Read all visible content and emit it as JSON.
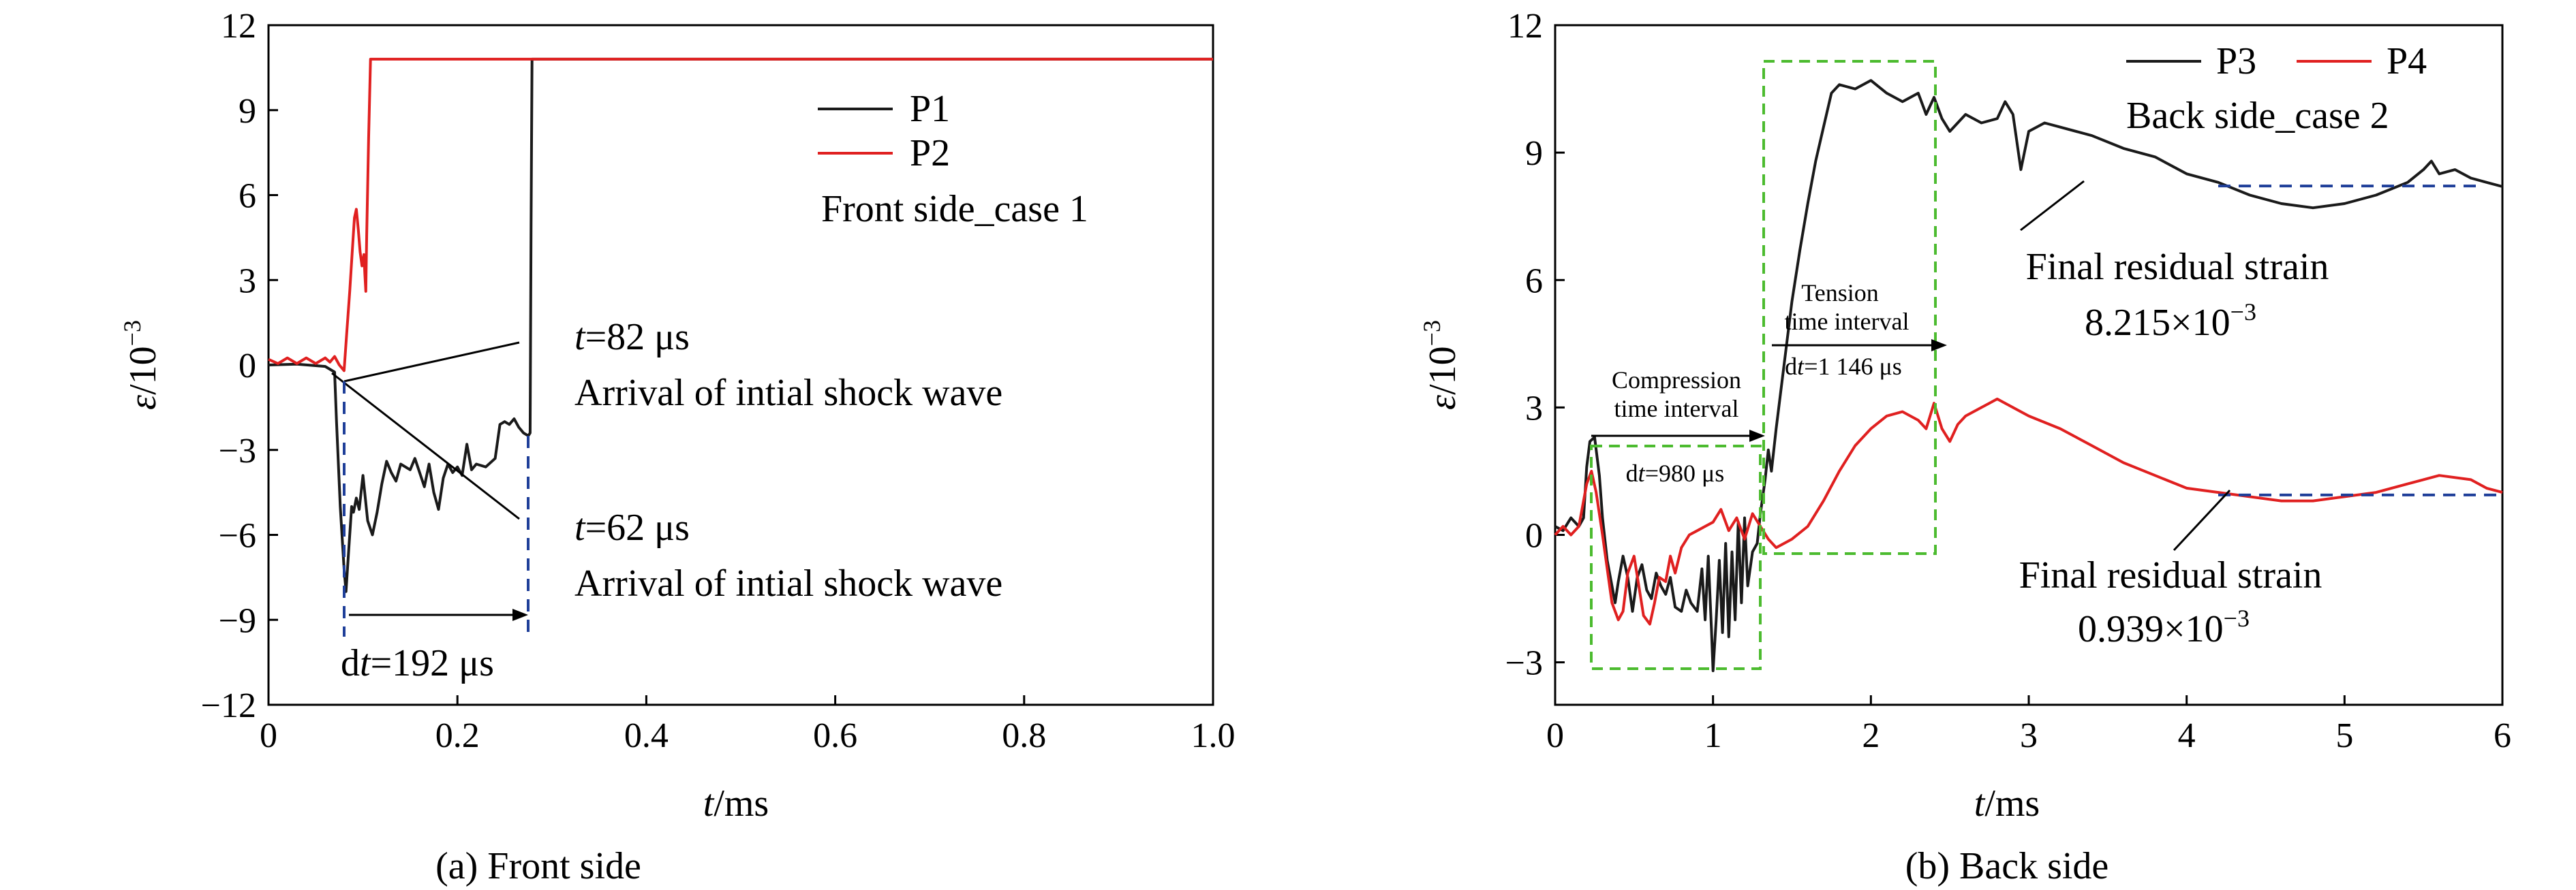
{
  "chart_data": [
    {
      "type": "line",
      "caption": "(a) Front side",
      "xlabel_italic": "t",
      "xlabel_unit": "/ms",
      "ylabel_italic": "ε",
      "ylabel_unit": "/10",
      "ylabel_exp": "−3",
      "xlim": [
        0,
        1.0
      ],
      "ylim": [
        -12,
        12
      ],
      "xticks": [
        0,
        0.2,
        0.4,
        0.6,
        0.8,
        1.0
      ],
      "xtick_labels": [
        "0",
        "0.2",
        "0.4",
        "0.6",
        "0.8",
        "1.0"
      ],
      "yticks": [
        -12,
        -9,
        -6,
        -3,
        0,
        3,
        6,
        9,
        12
      ],
      "ytick_labels": [
        "−12",
        "−9",
        "−6",
        "−3",
        "0",
        "3",
        "6",
        "9",
        "12"
      ],
      "legend_position": "upper-right",
      "legend_note": "Front side_case 1",
      "series": [
        {
          "name": "P1",
          "color": "#1a1a1a",
          "points": [
            [
              0,
              0
            ],
            [
              0.03,
              0.03
            ],
            [
              0.06,
              -0.05
            ],
            [
              0.07,
              -0.25
            ],
            [
              0.072,
              -2
            ],
            [
              0.076,
              -5
            ],
            [
              0.08,
              -7.2
            ],
            [
              0.082,
              -8
            ],
            [
              0.085,
              -6.5
            ],
            [
              0.088,
              -5
            ],
            [
              0.09,
              -5.2
            ],
            [
              0.093,
              -4.7
            ],
            [
              0.096,
              -5.1
            ],
            [
              0.1,
              -3.9
            ],
            [
              0.105,
              -5.5
            ],
            [
              0.11,
              -6
            ],
            [
              0.115,
              -5.2
            ],
            [
              0.12,
              -4.2
            ],
            [
              0.125,
              -3.4
            ],
            [
              0.13,
              -3.8
            ],
            [
              0.135,
              -4.1
            ],
            [
              0.14,
              -3.5
            ],
            [
              0.15,
              -3.7
            ],
            [
              0.155,
              -3.3
            ],
            [
              0.16,
              -3.8
            ],
            [
              0.165,
              -4.3
            ],
            [
              0.17,
              -3.5
            ],
            [
              0.175,
              -4.5
            ],
            [
              0.18,
              -5.1
            ],
            [
              0.185,
              -4
            ],
            [
              0.19,
              -3.5
            ],
            [
              0.195,
              -3.8
            ],
            [
              0.2,
              -3.6
            ],
            [
              0.205,
              -3.9
            ],
            [
              0.21,
              -2.8
            ],
            [
              0.215,
              -3.7
            ],
            [
              0.22,
              -3.5
            ],
            [
              0.23,
              -3.6
            ],
            [
              0.24,
              -3.3
            ],
            [
              0.245,
              -2.1
            ],
            [
              0.25,
              -2.0
            ],
            [
              0.255,
              -2.1
            ],
            [
              0.26,
              -1.9
            ],
            [
              0.265,
              -2.2
            ],
            [
              0.27,
              -2.4
            ],
            [
              0.275,
              -2.5
            ],
            [
              0.277,
              -2.4
            ],
            [
              0.278,
              5
            ],
            [
              0.279,
              10.8
            ],
            [
              1.0,
              10.8
            ]
          ]
        },
        {
          "name": "P2",
          "color": "#e02020",
          "points": [
            [
              0,
              0.2
            ],
            [
              0.01,
              0.05
            ],
            [
              0.02,
              0.25
            ],
            [
              0.03,
              0.05
            ],
            [
              0.04,
              0.25
            ],
            [
              0.05,
              0.05
            ],
            [
              0.06,
              0.25
            ],
            [
              0.065,
              0.1
            ],
            [
              0.07,
              0.3
            ],
            [
              0.075,
              0
            ],
            [
              0.08,
              -0.2
            ],
            [
              0.083,
              1.2
            ],
            [
              0.086,
              2.6
            ],
            [
              0.089,
              4.2
            ],
            [
              0.091,
              5.2
            ],
            [
              0.093,
              5.5
            ],
            [
              0.095,
              4.8
            ],
            [
              0.097,
              4.0
            ],
            [
              0.099,
              3.5
            ],
            [
              0.101,
              3.9
            ],
            [
              0.102,
              3.2
            ],
            [
              0.103,
              2.6
            ],
            [
              0.104,
              4.6
            ],
            [
              0.106,
              8
            ],
            [
              0.108,
              10.8
            ],
            [
              1.0,
              10.8
            ]
          ]
        }
      ],
      "annotations": {
        "a1_italic": "t",
        "a1_rest": "=82 μs",
        "a1_text": "Arrival of intial shock wave",
        "a2_italic": "t",
        "a2_rest": "=62 μs",
        "a2_text": "Arrival of intial shock wave",
        "dt_prefix": "d",
        "dt_italic": "t",
        "dt_rest": "=192 μs"
      }
    },
    {
      "type": "line",
      "caption": "(b) Back side",
      "xlabel_italic": "t",
      "xlabel_unit": "/ms",
      "ylabel_italic": "ε",
      "ylabel_unit": "/10",
      "ylabel_exp": "−3",
      "xlim": [
        0,
        6
      ],
      "ylim": [
        -4,
        12
      ],
      "xticks": [
        0,
        1,
        2,
        3,
        4,
        5,
        6
      ],
      "xtick_labels": [
        "0",
        "1",
        "2",
        "3",
        "4",
        "5",
        "6"
      ],
      "yticks": [
        -3,
        0,
        3,
        6,
        9,
        12
      ],
      "ytick_labels": [
        "−3",
        "0",
        "3",
        "6",
        "9",
        "12"
      ],
      "legend_position": "top-right",
      "legend_note": "Back side_case 2",
      "series": [
        {
          "name": "P3",
          "color": "#1a1a1a",
          "points": [
            [
              0,
              0.2
            ],
            [
              0.05,
              0.1
            ],
            [
              0.1,
              0.4
            ],
            [
              0.15,
              0.2
            ],
            [
              0.18,
              0.4
            ],
            [
              0.2,
              1.6
            ],
            [
              0.22,
              2.2
            ],
            [
              0.25,
              2.3
            ],
            [
              0.28,
              1.4
            ],
            [
              0.3,
              0.4
            ],
            [
              0.33,
              -0.6
            ],
            [
              0.36,
              -1.2
            ],
            [
              0.38,
              -1.6
            ],
            [
              0.4,
              -1.1
            ],
            [
              0.43,
              -0.5
            ],
            [
              0.46,
              -1.0
            ],
            [
              0.49,
              -1.8
            ],
            [
              0.52,
              -1.0
            ],
            [
              0.55,
              -0.7
            ],
            [
              0.58,
              -1.3
            ],
            [
              0.61,
              -1.5
            ],
            [
              0.64,
              -0.9
            ],
            [
              0.67,
              -1.2
            ],
            [
              0.7,
              -1.4
            ],
            [
              0.73,
              -1.0
            ],
            [
              0.76,
              -1.7
            ],
            [
              0.8,
              -1.8
            ],
            [
              0.83,
              -1.3
            ],
            [
              0.86,
              -1.6
            ],
            [
              0.9,
              -1.8
            ],
            [
              0.93,
              -0.8
            ],
            [
              0.95,
              -2.0
            ],
            [
              0.97,
              -0.5
            ],
            [
              0.99,
              -2.2
            ],
            [
              1.0,
              -3.2
            ],
            [
              1.02,
              -2.0
            ],
            [
              1.04,
              -0.6
            ],
            [
              1.06,
              -2.3
            ],
            [
              1.08,
              -0.2
            ],
            [
              1.1,
              -2.4
            ],
            [
              1.12,
              -0.4
            ],
            [
              1.14,
              -2.0
            ],
            [
              1.16,
              0.3
            ],
            [
              1.18,
              -1.6
            ],
            [
              1.2,
              0.4
            ],
            [
              1.22,
              -1.2
            ],
            [
              1.25,
              -0.4
            ],
            [
              1.28,
              -0.2
            ],
            [
              1.3,
              0.5
            ],
            [
              1.33,
              1.3
            ],
            [
              1.35,
              2.0
            ],
            [
              1.37,
              1.5
            ],
            [
              1.4,
              2.5
            ],
            [
              1.45,
              4.0
            ],
            [
              1.5,
              5.5
            ],
            [
              1.55,
              6.7
            ],
            [
              1.6,
              7.8
            ],
            [
              1.65,
              8.8
            ],
            [
              1.7,
              9.6
            ],
            [
              1.75,
              10.4
            ],
            [
              1.8,
              10.6
            ],
            [
              1.9,
              10.5
            ],
            [
              2.0,
              10.7
            ],
            [
              2.1,
              10.4
            ],
            [
              2.2,
              10.2
            ],
            [
              2.3,
              10.4
            ],
            [
              2.35,
              9.9
            ],
            [
              2.4,
              10.3
            ],
            [
              2.45,
              9.8
            ],
            [
              2.5,
              9.5
            ],
            [
              2.6,
              9.9
            ],
            [
              2.7,
              9.7
            ],
            [
              2.8,
              9.8
            ],
            [
              2.85,
              10.2
            ],
            [
              2.9,
              9.9
            ],
            [
              2.95,
              8.6
            ],
            [
              3.0,
              9.5
            ],
            [
              3.1,
              9.7
            ],
            [
              3.2,
              9.6
            ],
            [
              3.4,
              9.4
            ],
            [
              3.6,
              9.1
            ],
            [
              3.8,
              8.9
            ],
            [
              4.0,
              8.5
            ],
            [
              4.2,
              8.3
            ],
            [
              4.4,
              8.0
            ],
            [
              4.6,
              7.8
            ],
            [
              4.8,
              7.7
            ],
            [
              5.0,
              7.8
            ],
            [
              5.2,
              8.0
            ],
            [
              5.4,
              8.3
            ],
            [
              5.5,
              8.6
            ],
            [
              5.55,
              8.8
            ],
            [
              5.6,
              8.5
            ],
            [
              5.7,
              8.6
            ],
            [
              5.8,
              8.4
            ],
            [
              5.9,
              8.3
            ],
            [
              6.0,
              8.2
            ]
          ]
        },
        {
          "name": "P4",
          "color": "#e02020",
          "points": [
            [
              0,
              0.0
            ],
            [
              0.05,
              0.2
            ],
            [
              0.1,
              0.0
            ],
            [
              0.15,
              0.2
            ],
            [
              0.2,
              1.2
            ],
            [
              0.23,
              1.5
            ],
            [
              0.26,
              1.0
            ],
            [
              0.3,
              0.0
            ],
            [
              0.33,
              -0.8
            ],
            [
              0.36,
              -1.6
            ],
            [
              0.4,
              -2.0
            ],
            [
              0.43,
              -1.8
            ],
            [
              0.46,
              -0.9
            ],
            [
              0.5,
              -0.5
            ],
            [
              0.53,
              -1.2
            ],
            [
              0.56,
              -1.9
            ],
            [
              0.6,
              -2.1
            ],
            [
              0.63,
              -1.6
            ],
            [
              0.66,
              -1.0
            ],
            [
              0.7,
              -1.1
            ],
            [
              0.73,
              -0.5
            ],
            [
              0.76,
              -0.9
            ],
            [
              0.8,
              -0.3
            ],
            [
              0.85,
              0.0
            ],
            [
              0.9,
              0.1
            ],
            [
              0.95,
              0.2
            ],
            [
              1.0,
              0.3
            ],
            [
              1.05,
              0.6
            ],
            [
              1.1,
              0.1
            ],
            [
              1.15,
              0.4
            ],
            [
              1.2,
              -0.1
            ],
            [
              1.25,
              0.5
            ],
            [
              1.3,
              0.2
            ],
            [
              1.35,
              -0.1
            ],
            [
              1.4,
              -0.3
            ],
            [
              1.5,
              -0.1
            ],
            [
              1.6,
              0.2
            ],
            [
              1.7,
              0.8
            ],
            [
              1.8,
              1.5
            ],
            [
              1.9,
              2.1
            ],
            [
              2.0,
              2.5
            ],
            [
              2.1,
              2.8
            ],
            [
              2.2,
              2.9
            ],
            [
              2.3,
              2.7
            ],
            [
              2.35,
              2.5
            ],
            [
              2.4,
              3.1
            ],
            [
              2.45,
              2.5
            ],
            [
              2.5,
              2.2
            ],
            [
              2.55,
              2.6
            ],
            [
              2.6,
              2.8
            ],
            [
              2.7,
              3.0
            ],
            [
              2.8,
              3.2
            ],
            [
              2.9,
              3.0
            ],
            [
              3.0,
              2.8
            ],
            [
              3.2,
              2.5
            ],
            [
              3.4,
              2.1
            ],
            [
              3.6,
              1.7
            ],
            [
              3.8,
              1.4
            ],
            [
              4.0,
              1.1
            ],
            [
              4.2,
              1.0
            ],
            [
              4.4,
              0.9
            ],
            [
              4.6,
              0.8
            ],
            [
              4.8,
              0.8
            ],
            [
              5.0,
              0.9
            ],
            [
              5.2,
              1.0
            ],
            [
              5.4,
              1.2
            ],
            [
              5.6,
              1.4
            ],
            [
              5.8,
              1.3
            ],
            [
              5.9,
              1.1
            ],
            [
              6.0,
              1.0
            ]
          ]
        }
      ],
      "annotations": {
        "compression_l1": "Compression",
        "compression_l2": "time interval",
        "compression_dt_prefix": "d",
        "compression_dt_italic": "t",
        "compression_dt_rest": "=980 μs",
        "tension_l1": "Tension",
        "tension_l2": "time interval",
        "tension_dt_prefix": "d",
        "tension_dt_italic": "t",
        "tension_dt_rest": "=1 146 μs",
        "residual1_l1": "Final residual strain",
        "residual1_value": "8.215×10",
        "residual1_exp": "−3",
        "residual2_l1": "Final residual strain",
        "residual2_value": "0.939×10",
        "residual2_exp": "−3",
        "residual1_level": 8.215,
        "residual2_level": 0.939
      }
    }
  ]
}
